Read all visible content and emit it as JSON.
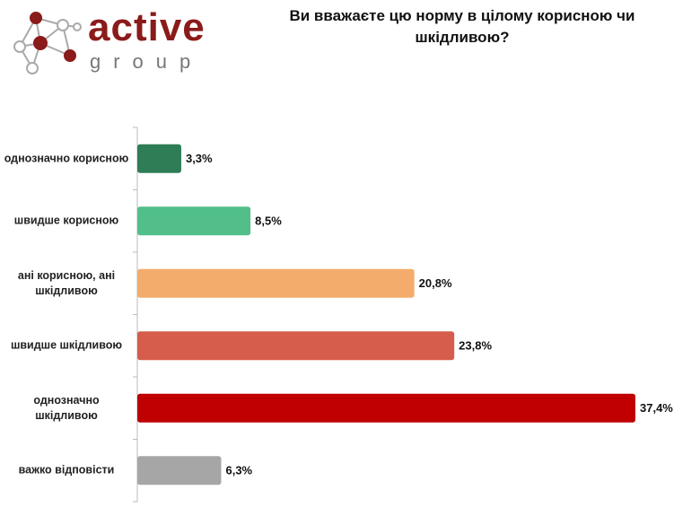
{
  "logo": {
    "name": "active",
    "sub": "group"
  },
  "chart_data": {
    "type": "barh",
    "title": "Ви вважаєте цю норму в цілому корисною чи шкідливою?",
    "categories": [
      "однозначно корисною",
      "швидше корисною",
      "ані корисною, ані шкідливою",
      "швидше шкідливою",
      "однозначно шкідливою",
      "важко відповісти"
    ],
    "values": [
      3.3,
      8.5,
      20.8,
      23.8,
      37.4,
      6.3
    ],
    "value_labels": [
      "3,3%",
      "8,5%",
      "20,8%",
      "23,8%",
      "37,4%",
      "6,3%"
    ],
    "colors": [
      "#2f7d57",
      "#52bf8a",
      "#f3ac6b",
      "#d65c4b",
      "#c00000",
      "#a6a6a6"
    ]
  }
}
